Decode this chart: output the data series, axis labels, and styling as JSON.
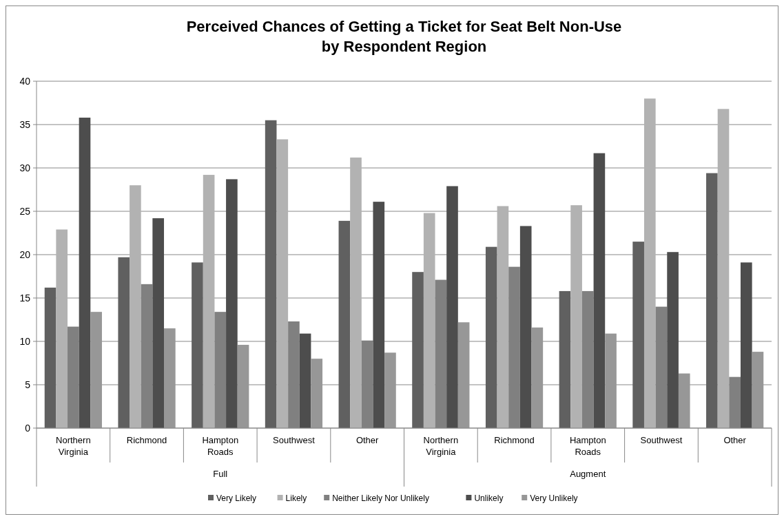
{
  "chart_data": {
    "type": "bar",
    "title": "Perceived Chances of Getting a Ticket for Seat Belt Non-Use by Respondent Region",
    "categories": [
      "Northern Virginia",
      "Richmond",
      "Hampton Roads",
      "Southwest",
      "Other",
      "Northern Virginia",
      "Richmond",
      "Hampton Roads",
      "Southwest",
      "Other"
    ],
    "series": [
      {
        "name": "Very Likely",
        "color": "#606060",
        "values": [
          16.2,
          19.7,
          19.1,
          35.5,
          23.9,
          18.0,
          20.9,
          15.8,
          21.5,
          29.4
        ]
      },
      {
        "name": "Likely",
        "color": "#b2b2b2",
        "values": [
          22.9,
          28.0,
          29.2,
          33.3,
          31.2,
          24.8,
          25.6,
          25.7,
          38.0,
          36.8
        ]
      },
      {
        "name": "Neither Likely Nor Unlikely",
        "color": "#808080",
        "values": [
          11.7,
          16.6,
          13.4,
          12.3,
          10.1,
          17.1,
          18.6,
          15.8,
          14.0,
          5.9
        ]
      },
      {
        "name": "Unlikely",
        "color": "#4d4d4d",
        "values": [
          35.8,
          24.2,
          28.7,
          10.9,
          26.1,
          27.9,
          23.3,
          31.7,
          20.3,
          19.1
        ]
      },
      {
        "name": "Very Unlikely",
        "color": "#979797",
        "values": [
          13.4,
          11.5,
          9.6,
          8.0,
          8.7,
          12.2,
          11.6,
          10.9,
          6.3,
          8.8
        ]
      }
    ],
    "annotations": [
      "Full",
      "Augment"
    ],
    "ylim": [
      0,
      40
    ],
    "yticks": [
      0,
      5,
      10,
      15,
      20,
      25,
      30,
      35,
      40
    ],
    "grid": "y",
    "legend": "bottom"
  }
}
